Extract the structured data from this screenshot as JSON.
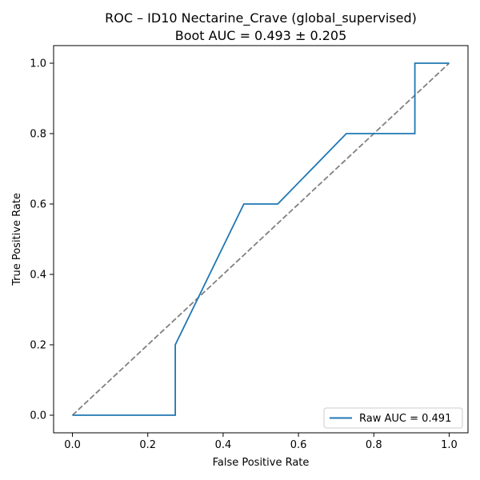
{
  "chart_data": {
    "type": "line",
    "title": "ROC – ID10 Nectarine_Crave (global_supervised)",
    "subtitle": "Boot AUC = 0.493 ± 0.205",
    "xlabel": "False Positive Rate",
    "ylabel": "True Positive Rate",
    "xlim": [
      -0.05,
      1.05
    ],
    "ylim": [
      -0.05,
      1.05
    ],
    "xticks": [
      "0.0",
      "0.2",
      "0.4",
      "0.6",
      "0.8",
      "1.0"
    ],
    "yticks": [
      "0.0",
      "0.2",
      "0.4",
      "0.6",
      "0.8",
      "1.0"
    ],
    "grid": false,
    "legend_position": "lower-right",
    "series": [
      {
        "name": "Raw AUC = 0.491",
        "color": "#1f77b4",
        "style": "solid",
        "x": [
          0.0,
          0.273,
          0.273,
          0.455,
          0.545,
          0.727,
          0.909,
          0.909,
          1.0
        ],
        "y": [
          0.0,
          0.0,
          0.2,
          0.6,
          0.6,
          0.8,
          0.8,
          1.0,
          1.0
        ]
      },
      {
        "color": "#808080",
        "style": "dashed",
        "x": [
          0.0,
          1.0
        ],
        "y": [
          0.0,
          1.0
        ]
      }
    ]
  }
}
